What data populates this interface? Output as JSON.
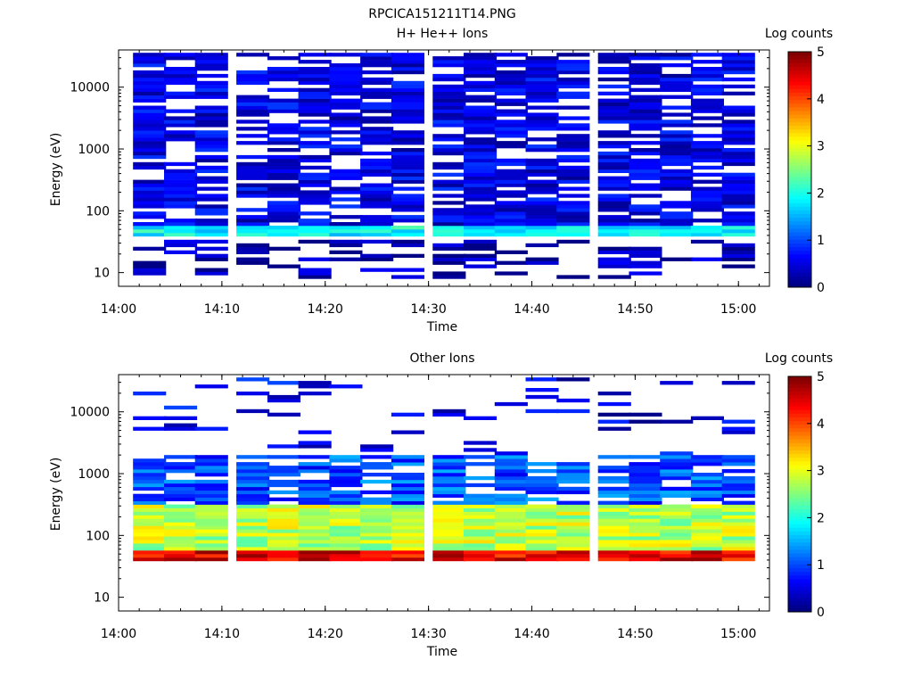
{
  "figure": {
    "title": "RPCICA151211T14.PNG"
  },
  "chart_data": [
    {
      "type": "heatmap",
      "title": "H+ He++ Ions",
      "xlabel": "Time",
      "ylabel": "Energy (eV)",
      "x_ticks": [
        "14:00",
        "14:10",
        "14:20",
        "14:30",
        "14:40",
        "14:50",
        "15:00"
      ],
      "y_ticks": [
        "10",
        "100",
        "1000",
        "10000"
      ],
      "y_scale": "log",
      "ylim": [
        6,
        40000
      ],
      "xlim": [
        "14:00",
        "15:03"
      ],
      "time_bins": [
        "14:03",
        "14:06",
        "14:09",
        "14:13",
        "14:16",
        "14:19",
        "14:22",
        "14:25",
        "14:28",
        "14:32",
        "14:35",
        "14:38",
        "14:41",
        "14:44",
        "14:48",
        "14:51",
        "14:54",
        "14:57",
        "15:00"
      ],
      "colorbar": {
        "label": "Log counts",
        "ticks": [
          "0",
          "1",
          "2",
          "3",
          "4",
          "5"
        ],
        "range": [
          0,
          5
        ]
      },
      "profile": {
        "description_values": "typical log10 counts per energy band",
        "low_energy_band": {
          "energy_range": [
            8,
            35
          ],
          "log_counts": 0.2
        },
        "core_band": {
          "energy_range": [
            40,
            60
          ],
          "log_counts": 1.9
        },
        "high_energy": {
          "energy_range": [
            60,
            40000
          ],
          "log_counts": 0.5
        }
      }
    },
    {
      "type": "heatmap",
      "title": "Other Ions",
      "xlabel": "Time",
      "ylabel": "Energy (eV)",
      "x_ticks": [
        "14:00",
        "14:10",
        "14:20",
        "14:30",
        "14:40",
        "14:50",
        "15:00"
      ],
      "y_ticks": [
        "10",
        "100",
        "1000",
        "10000"
      ],
      "y_scale": "log",
      "ylim": [
        6,
        40000
      ],
      "xlim": [
        "14:00",
        "15:03"
      ],
      "time_bins": [
        "14:03",
        "14:06",
        "14:09",
        "14:13",
        "14:16",
        "14:19",
        "14:22",
        "14:25",
        "14:28",
        "14:32",
        "14:35",
        "14:38",
        "14:41",
        "14:44",
        "14:48",
        "14:51",
        "14:54",
        "14:57",
        "15:00"
      ],
      "colorbar": {
        "label": "Log counts",
        "ticks": [
          "0",
          "1",
          "2",
          "3",
          "4",
          "5"
        ],
        "range": [
          0,
          5
        ]
      },
      "profile": {
        "description_values": "typical log10 counts per energy band",
        "peak_band": {
          "energy_range": [
            40,
            55
          ],
          "log_counts": 4.5
        },
        "shoulder_band": {
          "energy_range": [
            55,
            300
          ],
          "log_counts": 2.8
        },
        "upper_band": {
          "energy_range": [
            300,
            2000
          ],
          "log_counts": 1.0
        },
        "sparse_high": {
          "energy_range": [
            2000,
            40000
          ],
          "log_counts": 0.5
        }
      }
    }
  ]
}
